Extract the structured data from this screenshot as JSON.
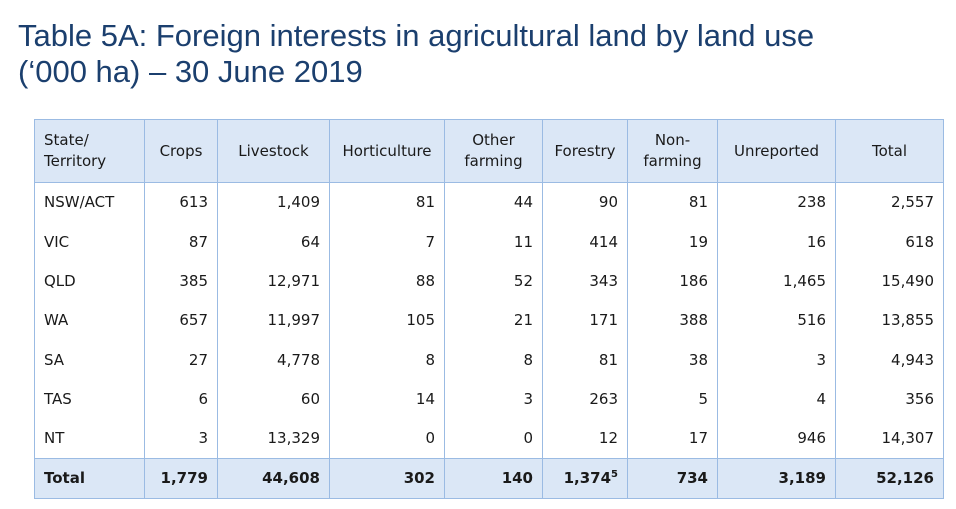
{
  "title": {
    "line1": "Table 5A: Foreign interests in agricultural land by land use",
    "line2": "(‘000 ha) – 30 June 2019"
  },
  "table": {
    "headers": {
      "state_line1": "State/",
      "state_line2": "Territory",
      "crops": "Crops",
      "livestock": "Livestock",
      "horticulture": "Horticulture",
      "other_line1": "Other",
      "other_line2": "farming",
      "forestry": "Forestry",
      "nonfarm_line1": "Non-",
      "nonfarm_line2": "farming",
      "unreported": "Unreported",
      "total": "Total"
    },
    "rows": [
      {
        "state": "NSW/ACT",
        "cells": [
          "613",
          "1,409",
          "81",
          "44",
          "90",
          "81",
          "238",
          "2,557"
        ]
      },
      {
        "state": "VIC",
        "cells": [
          "87",
          "64",
          "7",
          "11",
          "414",
          "19",
          "16",
          "618"
        ]
      },
      {
        "state": "QLD",
        "cells": [
          "385",
          "12,971",
          "88",
          "52",
          "343",
          "186",
          "1,465",
          "15,490"
        ]
      },
      {
        "state": "WA",
        "cells": [
          "657",
          "11,997",
          "105",
          "21",
          "171",
          "388",
          "516",
          "13,855"
        ]
      },
      {
        "state": "SA",
        "cells": [
          "27",
          "4,778",
          "8",
          "8",
          "81",
          "38",
          "3",
          "4,943"
        ]
      },
      {
        "state": "TAS",
        "cells": [
          "6",
          "60",
          "14",
          "3",
          "263",
          "5",
          "4",
          "356"
        ]
      },
      {
        "state": "NT",
        "cells": [
          "3",
          "13,329",
          "0",
          "0",
          "12",
          "17",
          "946",
          "14,307"
        ]
      }
    ],
    "total": {
      "label": "Total",
      "crops": "1,779",
      "livestock": "44,608",
      "horticulture": "302",
      "other": "140",
      "forestry": "1,374",
      "forestry_note": "5",
      "nonfarm": "734",
      "unreported": "3,189",
      "total": "52,126"
    }
  }
}
